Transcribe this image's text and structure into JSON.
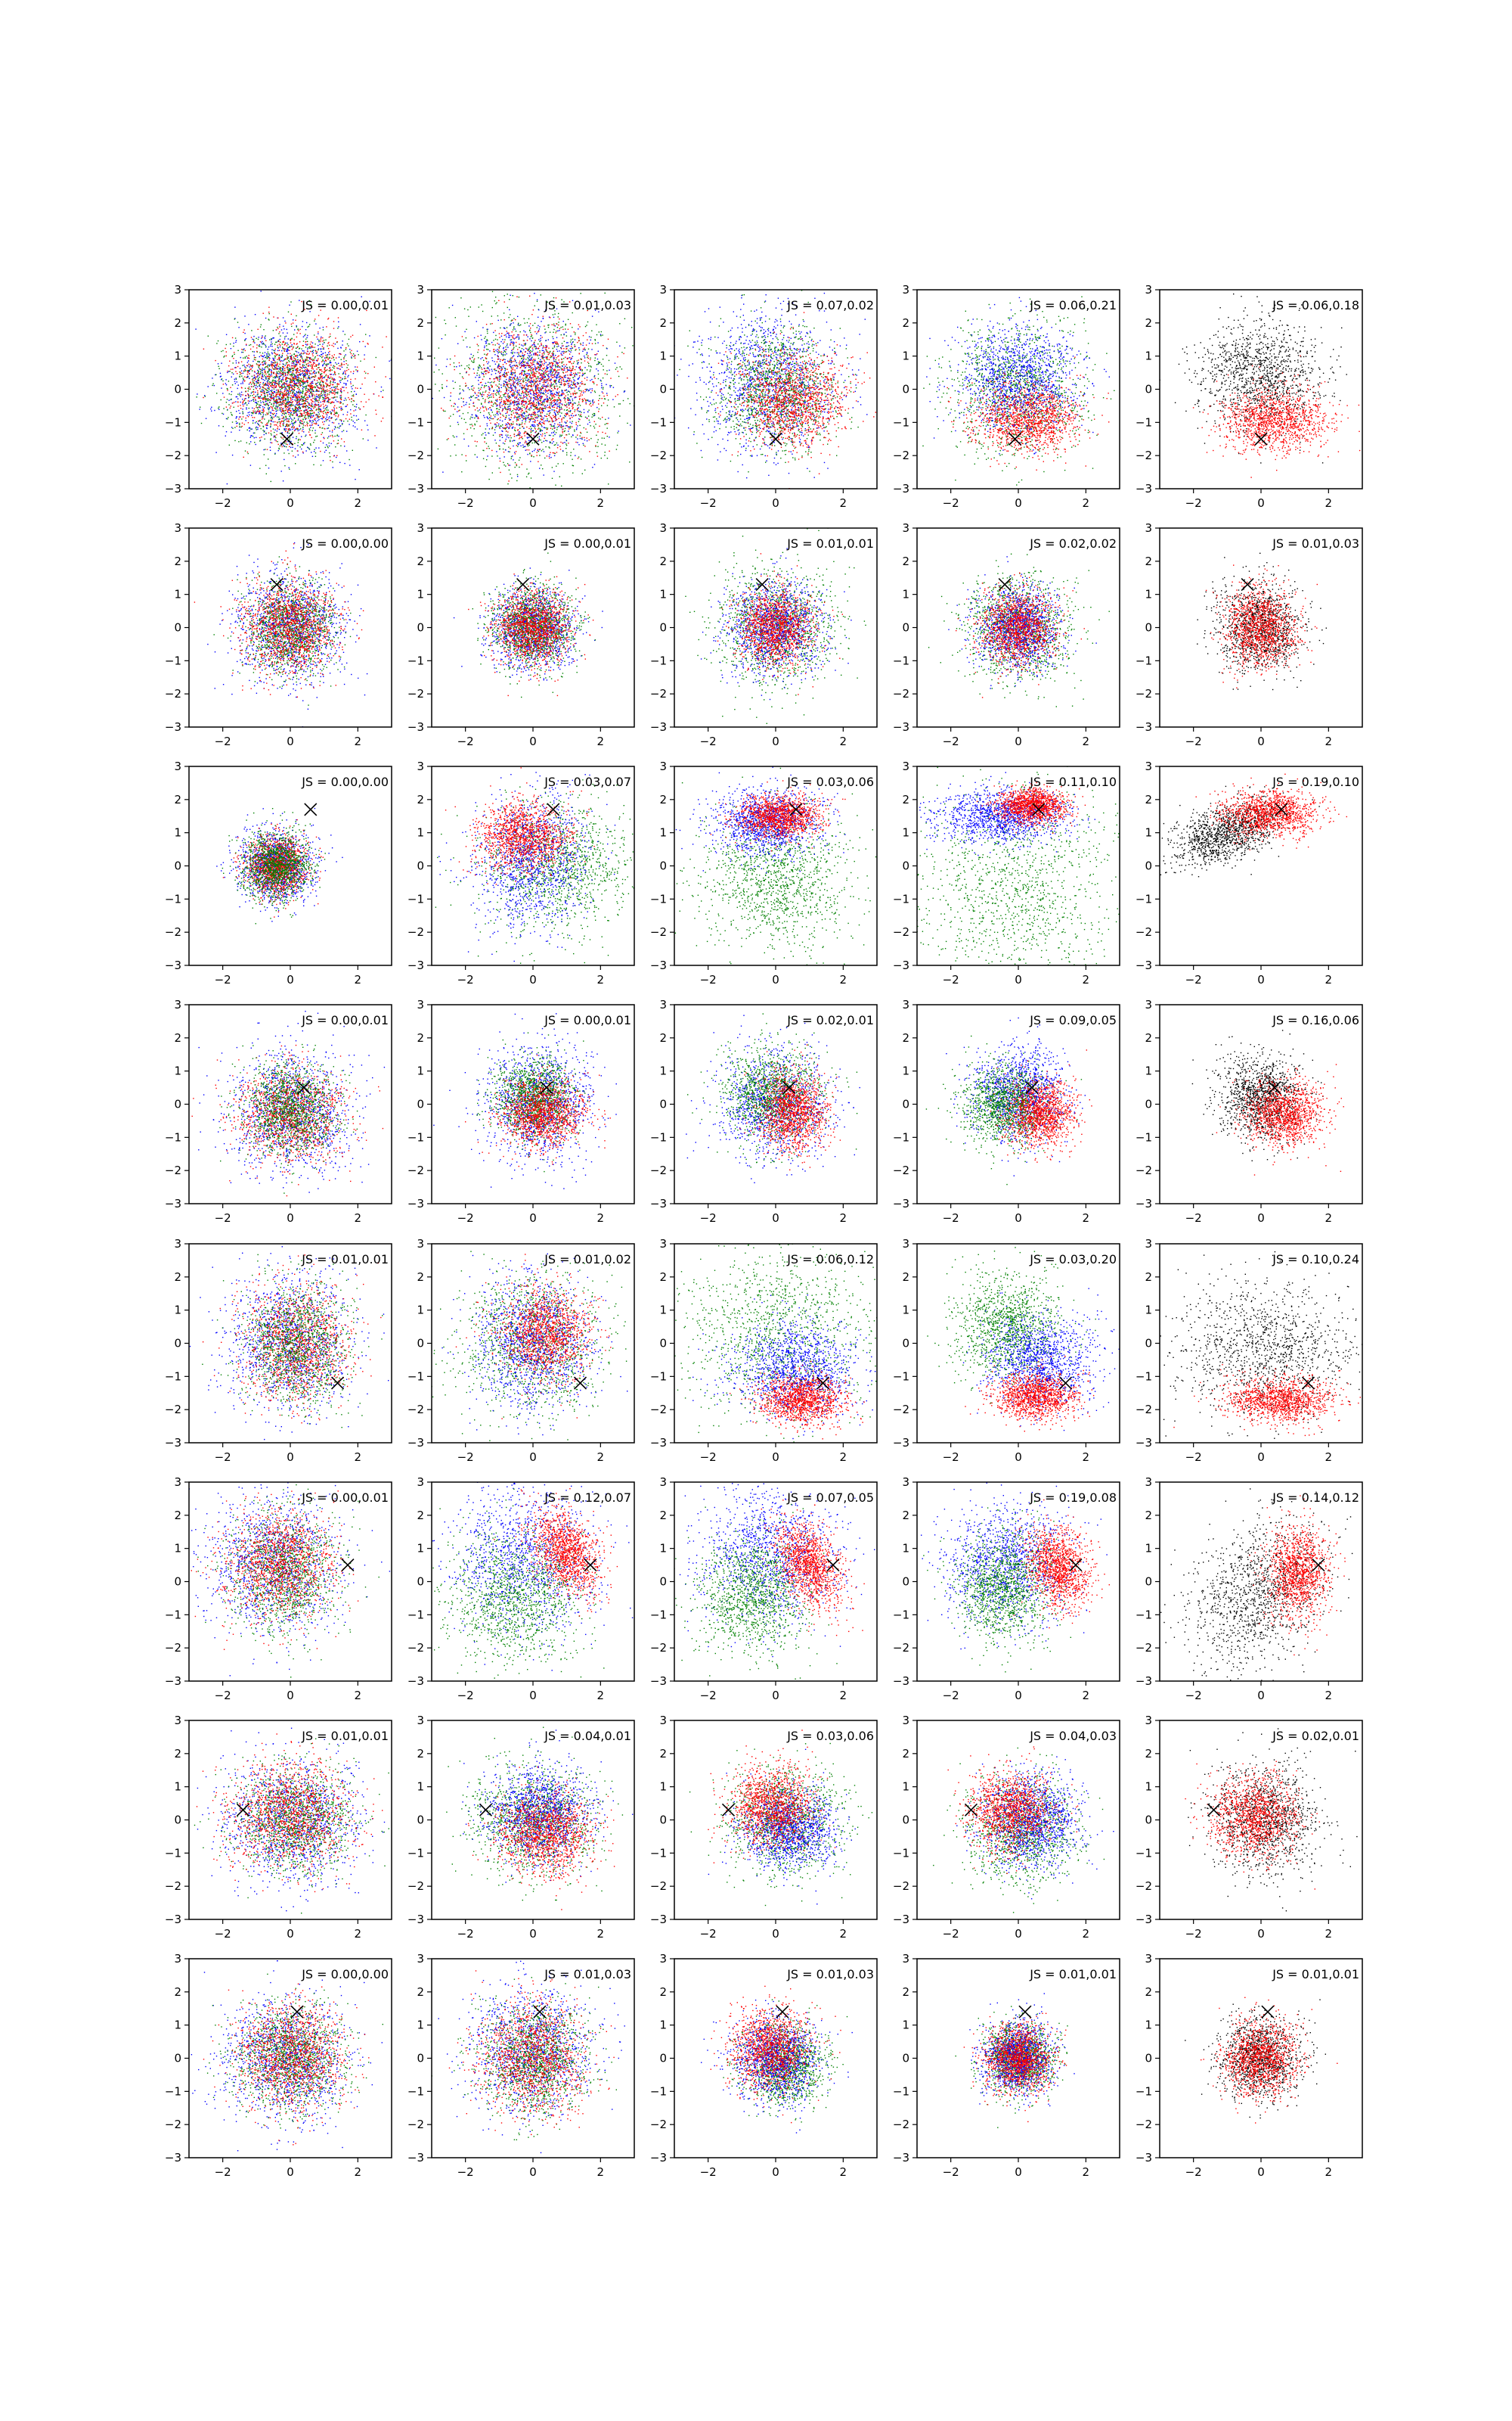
{
  "colors": {
    "red": "#ff0000",
    "green": "#008000",
    "blue": "#0000ff",
    "black": "#000000"
  },
  "chart_data": {
    "type": "scatter",
    "grid": false,
    "rows": 8,
    "cols": 5,
    "xlim": [
      -3,
      3
    ],
    "ylim": [
      -3,
      3
    ],
    "xticks": [
      -2,
      0,
      2
    ],
    "yticks": [
      -3,
      -2,
      -1,
      0,
      1,
      2,
      3
    ],
    "annotation_prefix": "JS = ",
    "panels": [
      {
        "js": "0.00,0.01",
        "marker": [
          -0.1,
          -1.5
        ]
      },
      {
        "js": "0.01,0.03",
        "marker": [
          0.0,
          -1.5
        ]
      },
      {
        "js": "0.07,0.02",
        "marker": [
          0.0,
          -1.5
        ]
      },
      {
        "js": "0.06,0.21",
        "marker": [
          -0.1,
          -1.5
        ]
      },
      {
        "js": "0.06,0.18",
        "marker": [
          0.0,
          -1.5
        ]
      },
      {
        "js": "0.00,0.00",
        "marker": [
          -0.4,
          1.3
        ]
      },
      {
        "js": "0.00,0.01",
        "marker": [
          -0.3,
          1.3
        ]
      },
      {
        "js": "0.01,0.01",
        "marker": [
          -0.4,
          1.3
        ]
      },
      {
        "js": "0.02,0.02",
        "marker": [
          -0.4,
          1.3
        ]
      },
      {
        "js": "0.01,0.03",
        "marker": [
          -0.4,
          1.3
        ]
      },
      {
        "js": "0.00,0.00",
        "marker": [
          0.6,
          1.7
        ]
      },
      {
        "js": "0.03,0.07",
        "marker": [
          0.6,
          1.7
        ]
      },
      {
        "js": "0.03,0.06",
        "marker": [
          0.6,
          1.7
        ]
      },
      {
        "js": "0.11,0.10",
        "marker": [
          0.6,
          1.7
        ]
      },
      {
        "js": "0.19,0.10",
        "marker": [
          0.6,
          1.7
        ]
      },
      {
        "js": "0.00,0.01",
        "marker": [
          0.4,
          0.5
        ]
      },
      {
        "js": "0.00,0.01",
        "marker": [
          0.4,
          0.5
        ]
      },
      {
        "js": "0.02,0.01",
        "marker": [
          0.4,
          0.5
        ]
      },
      {
        "js": "0.09,0.05",
        "marker": [
          0.4,
          0.5
        ]
      },
      {
        "js": "0.16,0.06",
        "marker": [
          0.4,
          0.5
        ]
      },
      {
        "js": "0.01,0.01",
        "marker": [
          1.4,
          -1.2
        ]
      },
      {
        "js": "0.01,0.02",
        "marker": [
          1.4,
          -1.2
        ]
      },
      {
        "js": "0.06,0.12",
        "marker": [
          1.4,
          -1.2
        ]
      },
      {
        "js": "0.03,0.20",
        "marker": [
          1.4,
          -1.2
        ]
      },
      {
        "js": "0.10,0.24",
        "marker": [
          1.4,
          -1.2
        ]
      },
      {
        "js": "0.00,0.01",
        "marker": [
          1.7,
          0.5
        ]
      },
      {
        "js": "0.12,0.07",
        "marker": [
          1.7,
          0.5
        ]
      },
      {
        "js": "0.07,0.05",
        "marker": [
          1.7,
          0.5
        ]
      },
      {
        "js": "0.19,0.08",
        "marker": [
          1.7,
          0.5
        ]
      },
      {
        "js": "0.14,0.12",
        "marker": [
          1.7,
          0.5
        ]
      },
      {
        "js": "0.01,0.01",
        "marker": [
          -1.4,
          0.3
        ]
      },
      {
        "js": "0.04,0.01",
        "marker": [
          -1.4,
          0.3
        ]
      },
      {
        "js": "0.03,0.06",
        "marker": [
          -1.4,
          0.3
        ]
      },
      {
        "js": "0.04,0.03",
        "marker": [
          -1.4,
          0.3
        ]
      },
      {
        "js": "0.02,0.01",
        "marker": [
          -1.4,
          0.3
        ]
      },
      {
        "js": "0.00,0.00",
        "marker": [
          0.2,
          1.4
        ]
      },
      {
        "js": "0.01,0.03",
        "marker": [
          0.2,
          1.4
        ]
      },
      {
        "js": "0.01,0.03",
        "marker": [
          0.2,
          1.4
        ]
      },
      {
        "js": "0.01,0.01",
        "marker": [
          0.2,
          1.4
        ]
      },
      {
        "js": "0.01,0.01",
        "marker": [
          0.2,
          1.4
        ]
      }
    ]
  }
}
